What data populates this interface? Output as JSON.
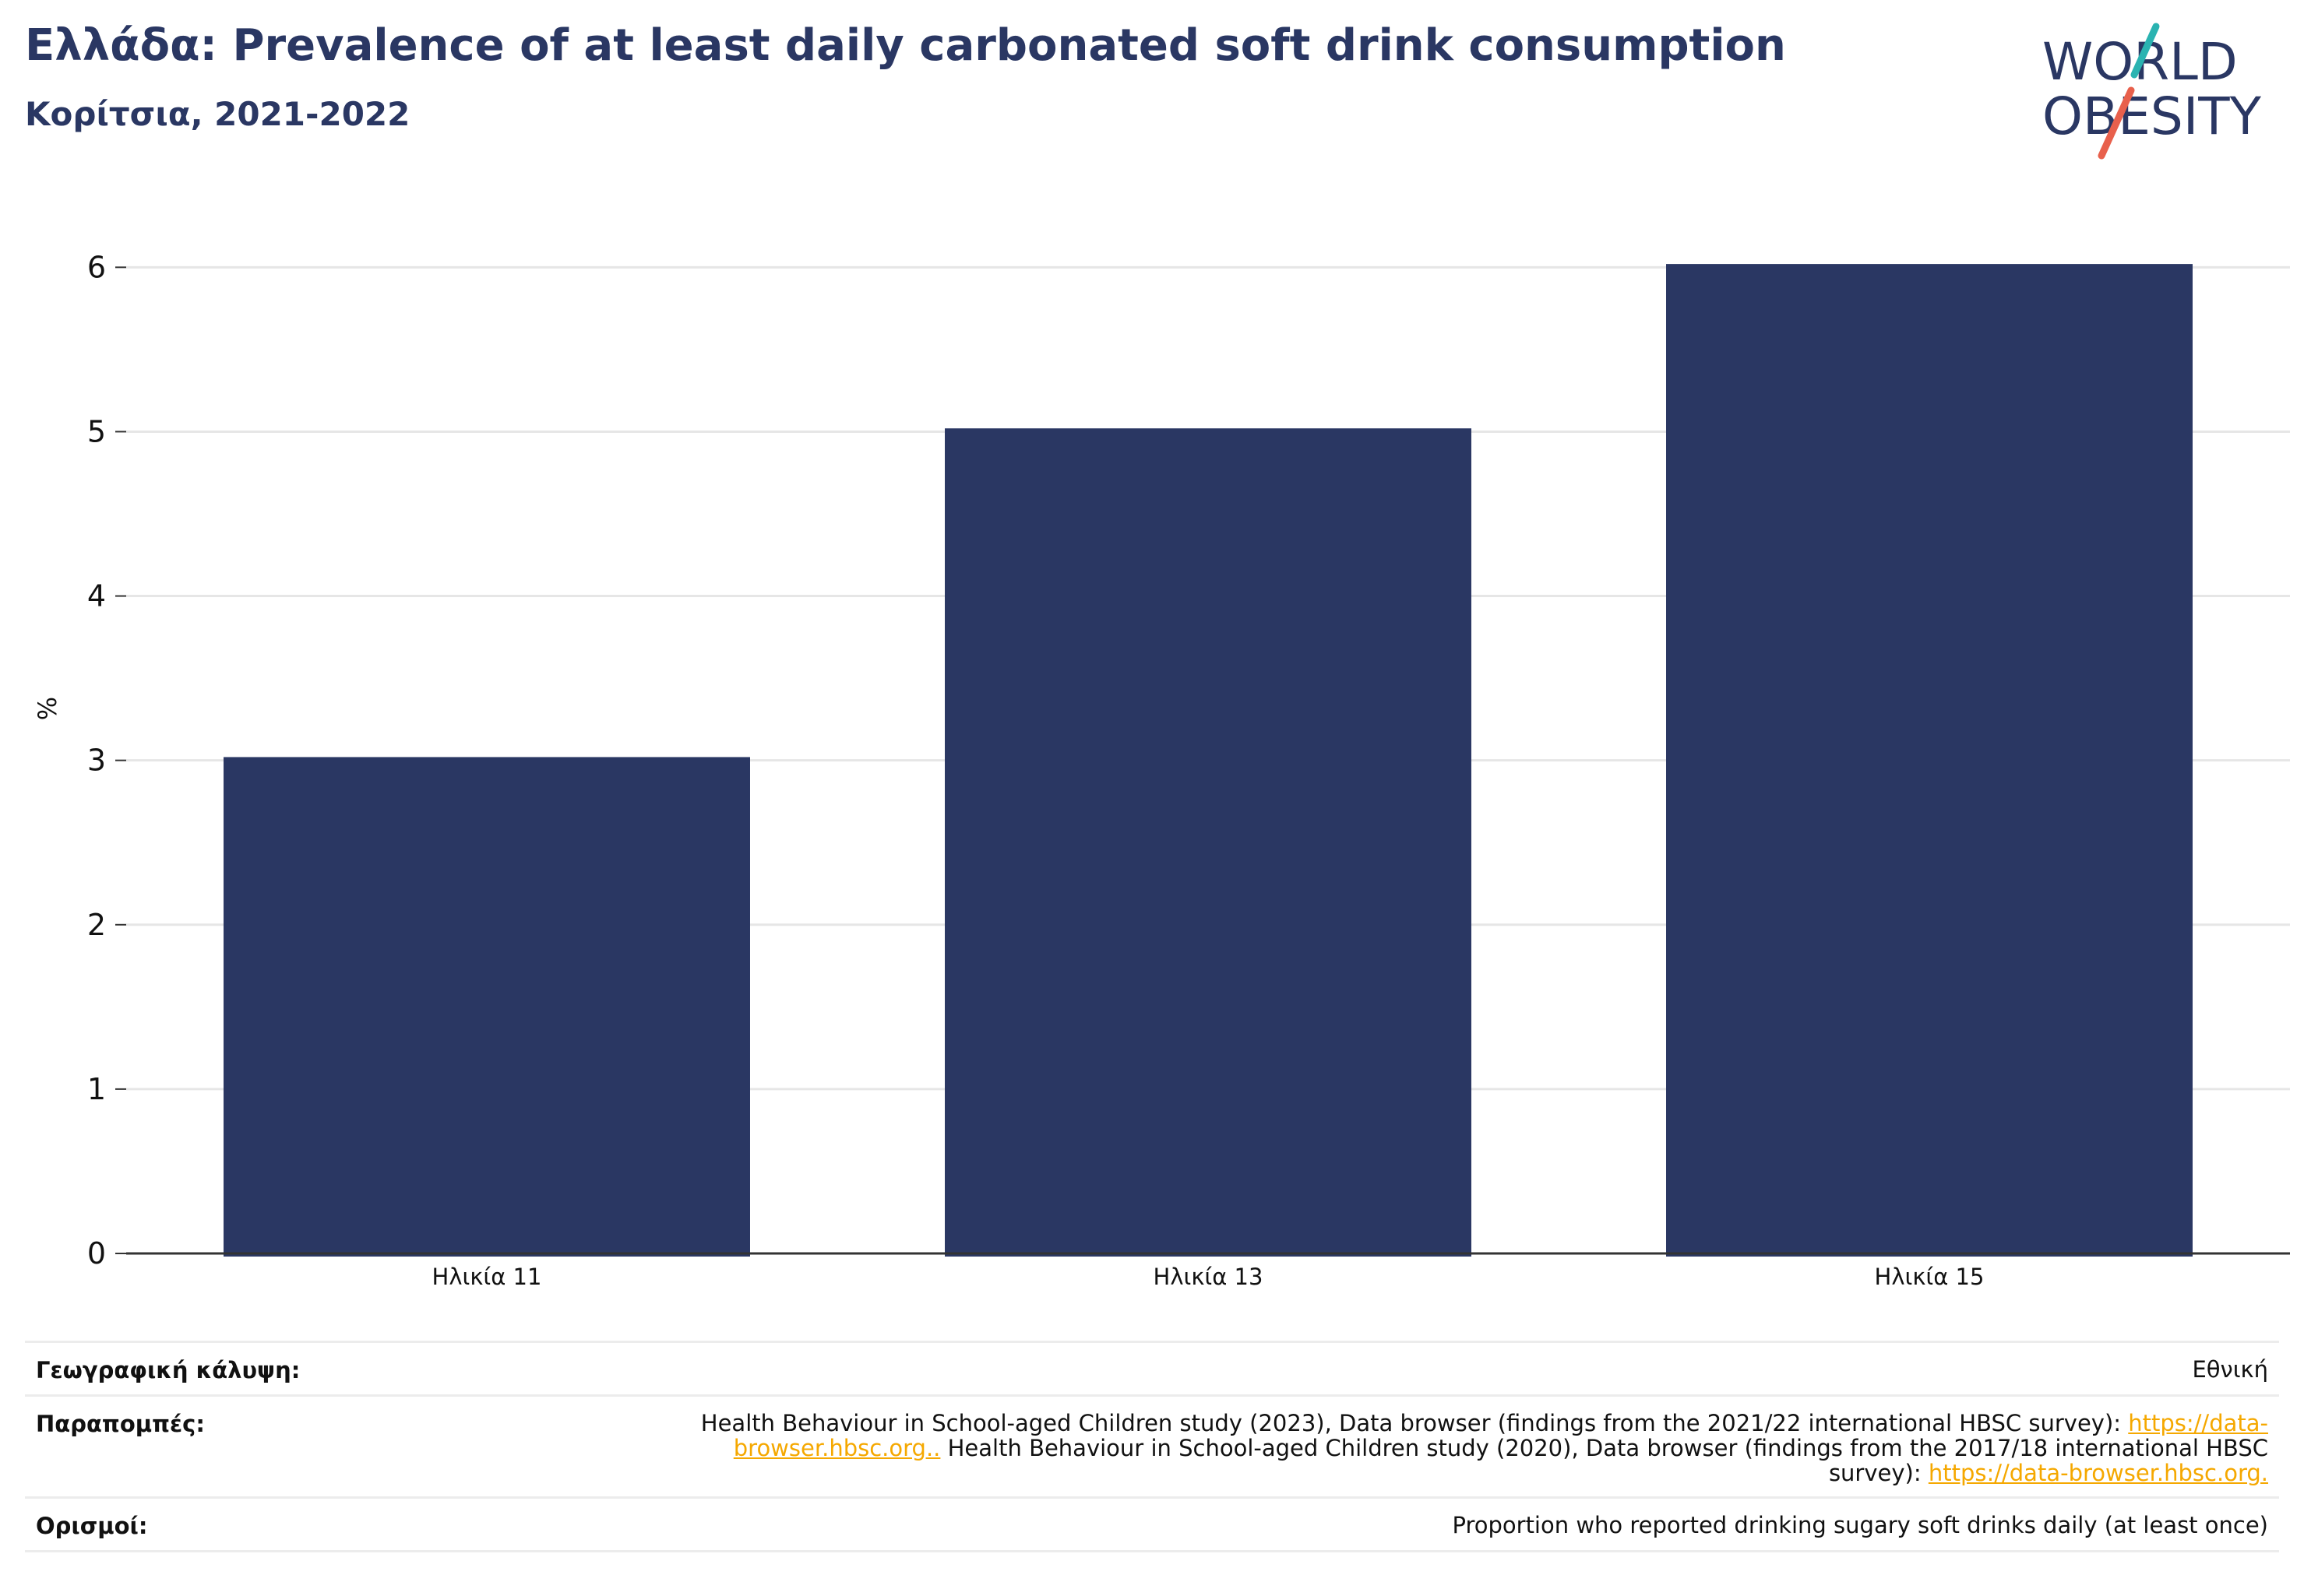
{
  "header": {
    "title": "Ελλάδα: Prevalence of at least daily carbonated soft drink consumption",
    "subtitle": "Κορίτσια, 2021-2022"
  },
  "logo": {
    "line1": "WORLD",
    "line2": "OBESITY",
    "colors": {
      "text": "#2a3763",
      "slash_teal": "#2ab3b1",
      "slash_coral": "#e8604c"
    }
  },
  "chart_data": {
    "type": "bar",
    "categories": [
      "Ηλικία 11",
      "Ηλικία 13",
      "Ηλικία 15"
    ],
    "values": [
      3.02,
      5.02,
      6.02
    ],
    "ylabel": "%",
    "yticks": [
      0,
      1,
      2,
      3,
      4,
      5,
      6
    ],
    "ylim": [
      0,
      6.3
    ],
    "grid": true,
    "bar_color": "#2a3763"
  },
  "meta": {
    "coverage_label": "Γεωγραφική κάλυψη:",
    "coverage_value": "Εθνική",
    "refs_label": "Παραπομπές:",
    "refs_text1": "Health Behaviour in School-aged Children study (2023), Data browser (findings from the 2021/22 international HBSC survey): ",
    "refs_link1": "https://data-browser.hbsc.org..",
    "refs_text2": " Health Behaviour in School-aged Children study (2020), Data browser (findings from the 2017/18 international HBSC survey): ",
    "refs_link2": "https://data-browser.hbsc.org.",
    "defs_label": "Ορισμοί:",
    "defs_value": "Proportion who reported drinking sugary soft drinks daily (at least once)"
  }
}
